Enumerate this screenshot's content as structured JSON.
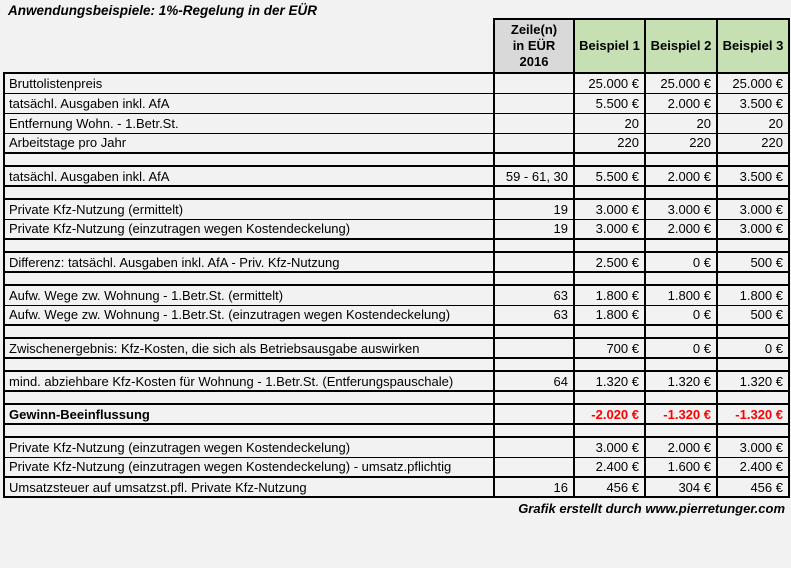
{
  "title": "Anwendungsbeispiele: 1%-Regelung in der EÜR",
  "footer_credit": "Grafik erstellt durch www.pierretunger.com",
  "colors": {
    "header_gray": "#D9D9D9",
    "header_green": "#C6E0B4",
    "negative_red": "#FF0000",
    "border_black": "#000000",
    "page_background": "#F2F2F2"
  },
  "table": {
    "headers": {
      "zeile_line1": "Zeile(n)",
      "zeile_line2": "in EÜR 2016",
      "beispiel1": "Beispiel 1",
      "beispiel2": "Beispiel 2",
      "beispiel3": "Beispiel 3"
    },
    "rows": [
      {
        "label": "Bruttolistenpreis",
        "zeile": "",
        "b1": "25.000 €",
        "b2": "25.000 €",
        "b3": "25.000 €"
      },
      {
        "label": "tatsächl. Ausgaben inkl. AfA",
        "zeile": "",
        "b1": "5.500 €",
        "b2": "2.000 €",
        "b3": "3.500 €"
      },
      {
        "label": "Entfernung Wohn. - 1.Betr.St.",
        "zeile": "",
        "b1": "20",
        "b2": "20",
        "b3": "20"
      },
      {
        "label": "Arbeitstage pro Jahr",
        "zeile": "",
        "b1": "220",
        "b2": "220",
        "b3": "220"
      },
      {
        "spacer": true
      },
      {
        "label": "tatsächl. Ausgaben inkl. AfA",
        "zeile": "59 - 61, 30",
        "b1": "5.500 €",
        "b2": "2.000 €",
        "b3": "3.500 €"
      },
      {
        "spacer": true
      },
      {
        "label": "Private Kfz-Nutzung (ermittelt)",
        "zeile": "19",
        "b1": "3.000 €",
        "b2": "3.000 €",
        "b3": "3.000 €"
      },
      {
        "label": "Private Kfz-Nutzung (einzutragen wegen Kostendeckelung)",
        "zeile": "19",
        "b1": "3.000 €",
        "b2": "2.000 €",
        "b3": "3.000 €"
      },
      {
        "spacer": true
      },
      {
        "label": "Differenz: tatsächl. Ausgaben inkl. AfA - Priv. Kfz-Nutzung",
        "zeile": "",
        "b1": "2.500 €",
        "b2": "0 €",
        "b3": "500 €"
      },
      {
        "spacer": true
      },
      {
        "label": "Aufw. Wege zw. Wohnung - 1.Betr.St. (ermittelt)",
        "zeile": "63",
        "b1": "1.800 €",
        "b2": "1.800 €",
        "b3": "1.800 €"
      },
      {
        "label": "Aufw. Wege zw. Wohnung - 1.Betr.St. (einzutragen wegen Kostendeckelung)",
        "zeile": "63",
        "b1": "1.800 €",
        "b2": "0 €",
        "b3": "500 €"
      },
      {
        "spacer": true
      },
      {
        "label": "Zwischenergebnis: Kfz-Kosten, die sich als Betriebsausgabe auswirken",
        "zeile": "",
        "b1": "700 €",
        "b2": "0 €",
        "b3": "0 €"
      },
      {
        "spacer": true
      },
      {
        "label": "mind. abziehbare Kfz-Kosten für Wohnung - 1.Betr.St. (Entferungspauschale)",
        "zeile": "64",
        "b1": "1.320 €",
        "b2": "1.320 €",
        "b3": "1.320 €"
      },
      {
        "spacer": true
      },
      {
        "label": "Gewinn-Beeinflussung",
        "zeile": "",
        "b1": "-2.020 €",
        "b2": "-1.320 €",
        "b3": "-1.320 €",
        "bold": true,
        "red": true
      },
      {
        "spacer": true
      },
      {
        "label": "Private Kfz-Nutzung (einzutragen wegen Kostendeckelung)",
        "zeile": "",
        "b1": "3.000 €",
        "b2": "2.000 €",
        "b3": "3.000 €"
      },
      {
        "label": "Private Kfz-Nutzung (einzutragen wegen Kostendeckelung) - umsatz.pflichtig",
        "zeile": "",
        "b1": "2.400 €",
        "b2": "1.600 €",
        "b3": "2.400 €"
      },
      {
        "label": "Umsatzsteuer auf umsatzst.pfl. Private Kfz-Nutzung",
        "zeile": "16",
        "b1": "456 €",
        "b2": "304 €",
        "b3": "456 €",
        "thick_top": true
      }
    ]
  }
}
